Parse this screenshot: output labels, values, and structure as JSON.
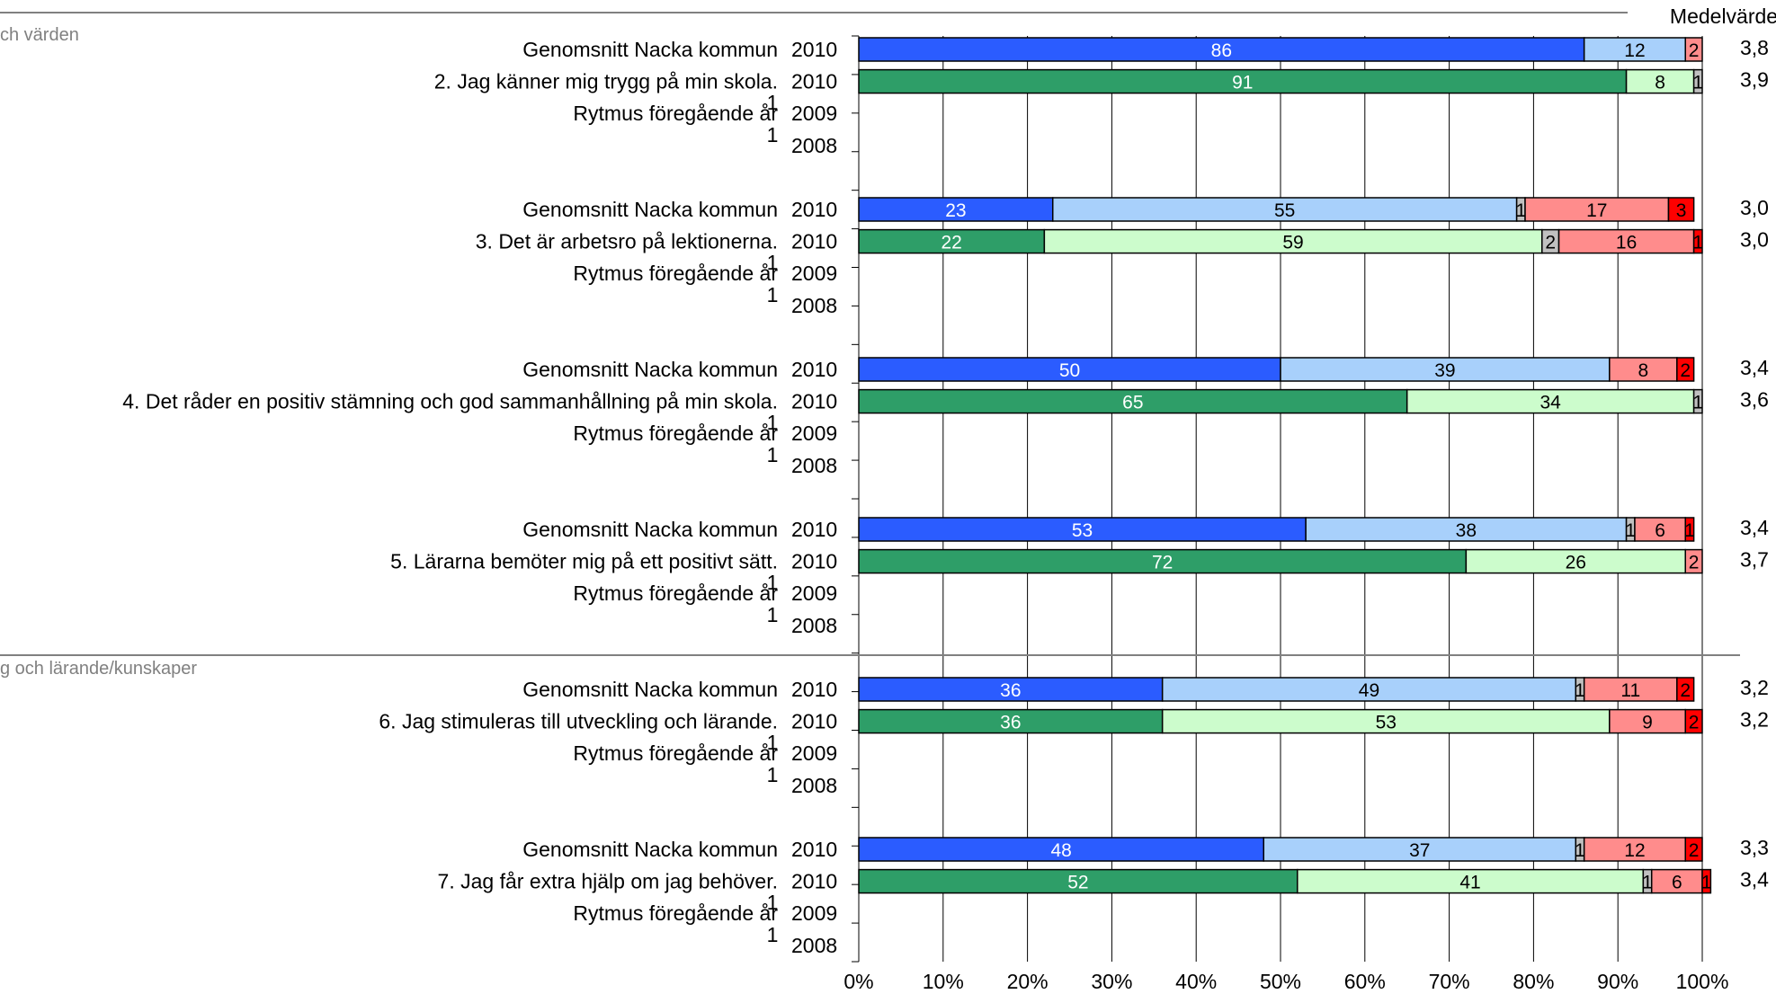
{
  "chart_data": {
    "type": "bar",
    "orientation": "horizontal",
    "stacked": true,
    "xlim": [
      0,
      100
    ],
    "x_ticks": [
      "0%",
      "10%",
      "20%",
      "30%",
      "40%",
      "50%",
      "60%",
      "70%",
      "80%",
      "90%",
      "100%"
    ],
    "mean_header": "Medelvärde",
    "sections": [
      {
        "title": "ch värden",
        "questions": [
          0,
          1,
          2,
          3
        ]
      },
      {
        "title": "g och lärande/kunskaper",
        "questions": [
          4,
          5
        ]
      }
    ],
    "questions": [
      {
        "text": "2.  Jag känner mig trygg på min skola.",
        "rows": [
          {
            "label": "Genomsnitt Nacka kommun",
            "year": "2010",
            "kind": "kommun",
            "values": [
              86,
              12,
              0,
              2,
              0
            ],
            "mean": "3,8"
          },
          {
            "label": "",
            "year": "2010",
            "kind": "school",
            "values": [
              91,
              8,
              1,
              0,
              0
            ],
            "mean": "3,9"
          },
          {
            "label": "Rytmus föregående år",
            "year": "2009",
            "kind": "empty",
            "sup": "1",
            "values": [],
            "mean": ""
          },
          {
            "label": "",
            "year": "2008",
            "kind": "empty",
            "sup": "1",
            "values": [],
            "mean": ""
          }
        ]
      },
      {
        "text": "3.  Det är arbetsro på lektionerna.",
        "rows": [
          {
            "label": "Genomsnitt Nacka kommun",
            "year": "2010",
            "kind": "kommun",
            "values": [
              23,
              55,
              1,
              17,
              3
            ],
            "mean": "3,0"
          },
          {
            "label": "",
            "year": "2010",
            "kind": "school",
            "values": [
              22,
              59,
              2,
              16,
              1
            ],
            "mean": "3,0"
          },
          {
            "label": "Rytmus föregående år",
            "year": "2009",
            "kind": "empty",
            "sup": "1",
            "values": [],
            "mean": ""
          },
          {
            "label": "",
            "year": "2008",
            "kind": "empty",
            "sup": "1",
            "values": [],
            "mean": ""
          }
        ]
      },
      {
        "text": "4.  Det råder en positiv stämning och god sammanhållning på min skola.",
        "rows": [
          {
            "label": "Genomsnitt Nacka kommun",
            "year": "2010",
            "kind": "kommun",
            "values": [
              50,
              39,
              0,
              8,
              2
            ],
            "mean": "3,4"
          },
          {
            "label": "",
            "year": "2010",
            "kind": "school",
            "values": [
              65,
              34,
              1,
              0,
              0
            ],
            "mean": "3,6"
          },
          {
            "label": "Rytmus föregående år",
            "year": "2009",
            "kind": "empty",
            "sup": "1",
            "values": [],
            "mean": ""
          },
          {
            "label": "",
            "year": "2008",
            "kind": "empty",
            "sup": "1",
            "values": [],
            "mean": ""
          }
        ]
      },
      {
        "text": "5.  Lärarna bemöter mig på ett positivt sätt.",
        "rows": [
          {
            "label": "Genomsnitt Nacka kommun",
            "year": "2010",
            "kind": "kommun",
            "values": [
              53,
              38,
              1,
              6,
              1
            ],
            "mean": "3,4"
          },
          {
            "label": "",
            "year": "2010",
            "kind": "school",
            "values": [
              72,
              26,
              0,
              2,
              0
            ],
            "mean": "3,7"
          },
          {
            "label": "Rytmus föregående år",
            "year": "2009",
            "kind": "empty",
            "sup": "1",
            "values": [],
            "mean": ""
          },
          {
            "label": "",
            "year": "2008",
            "kind": "empty",
            "sup": "1",
            "values": [],
            "mean": ""
          }
        ]
      },
      {
        "text": "6.  Jag stimuleras till utveckling och lärande.",
        "rows": [
          {
            "label": "Genomsnitt Nacka kommun",
            "year": "2010",
            "kind": "kommun",
            "values": [
              36,
              49,
              1,
              11,
              2
            ],
            "mean": "3,2"
          },
          {
            "label": "",
            "year": "2010",
            "kind": "school",
            "values": [
              36,
              53,
              0,
              9,
              2
            ],
            "mean": "3,2"
          },
          {
            "label": "Rytmus föregående år",
            "year": "2009",
            "kind": "empty",
            "sup": "1",
            "values": [],
            "mean": ""
          },
          {
            "label": "",
            "year": "2008",
            "kind": "empty",
            "sup": "1",
            "values": [],
            "mean": ""
          }
        ]
      },
      {
        "text": "7.  Jag får extra hjälp om jag behöver.",
        "rows": [
          {
            "label": "Genomsnitt Nacka kommun",
            "year": "2010",
            "kind": "kommun",
            "values": [
              48,
              37,
              1,
              12,
              2
            ],
            "mean": "3,3"
          },
          {
            "label": "",
            "year": "2010",
            "kind": "school",
            "values": [
              52,
              41,
              1,
              6,
              1
            ],
            "mean": "3,4"
          },
          {
            "label": "Rytmus föregående år",
            "year": "2009",
            "kind": "empty",
            "sup": "1",
            "values": [],
            "mean": ""
          },
          {
            "label": "",
            "year": "2008",
            "kind": "empty",
            "sup": "1",
            "values": [],
            "mean": ""
          }
        ]
      }
    ],
    "colors": {
      "kommun": [
        "#2b5cff",
        "#a8d0fb",
        "#c0c0c0",
        "#ff8c8c",
        "#ff0000"
      ],
      "school": [
        "#2e9e68",
        "#ccfccc",
        "#c0c0c0",
        "#ff8c8c",
        "#ff0000"
      ],
      "label_light": "#ffffff",
      "label_dark": "#000000",
      "grid": "#000000",
      "separator": "#808080"
    }
  }
}
